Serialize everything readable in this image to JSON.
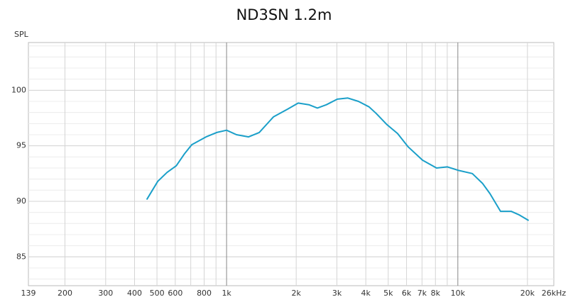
{
  "chart_data": {
    "type": "line",
    "title": "ND3SN 1.2m",
    "y_label": "SPL",
    "log_x": true,
    "x": [
      453,
      504,
      553,
      606,
      659,
      707,
      815,
      906,
      1000,
      1104,
      1245,
      1384,
      1594,
      1835,
      2040,
      2268,
      2470,
      2704,
      3010,
      3345,
      3716,
      4135,
      4440,
      4940,
      5490,
      6100,
      7040,
      8090,
      9020,
      10000,
      11550,
      12800,
      13760,
      15300,
      17000,
      18330,
      20140
    ],
    "series": [
      {
        "name": "SPL",
        "color": "#1a9fc9",
        "values": [
          90.2,
          91.8,
          92.6,
          93.2,
          94.3,
          95.1,
          95.8,
          96.2,
          96.4,
          96.0,
          95.8,
          96.2,
          97.6,
          98.3,
          98.85,
          98.7,
          98.4,
          98.7,
          99.2,
          99.3,
          99.0,
          98.5,
          97.9,
          96.9,
          96.1,
          94.9,
          93.7,
          93.0,
          93.1,
          92.8,
          92.5,
          91.6,
          90.7,
          89.1,
          89.1,
          88.8,
          88.3
        ]
      }
    ],
    "xlim": [
      139,
      26000
    ],
    "ylim": [
      82.4,
      104.3
    ],
    "xticks": [
      139,
      200,
      300,
      400,
      500,
      600,
      800,
      {
        "value": 1000,
        "label": "1k"
      },
      {
        "value": 2000,
        "label": "2k"
      },
      {
        "value": 3000,
        "label": "3k"
      },
      {
        "value": 4000,
        "label": "4k"
      },
      {
        "value": 5000,
        "label": "5k"
      },
      {
        "value": 6000,
        "label": "6k"
      },
      {
        "value": 7000,
        "label": "7k"
      },
      {
        "value": 8000,
        "label": "8k"
      },
      {
        "value": 10000,
        "label": "10k"
      },
      {
        "value": 20000,
        "label": "20k"
      },
      {
        "value": 26000,
        "label": "26kHz"
      }
    ],
    "xgrid_minor": [
      700,
      900,
      9000
    ],
    "yticks": [
      85,
      90,
      95,
      100
    ],
    "yminor_step": 1,
    "grid": true
  }
}
